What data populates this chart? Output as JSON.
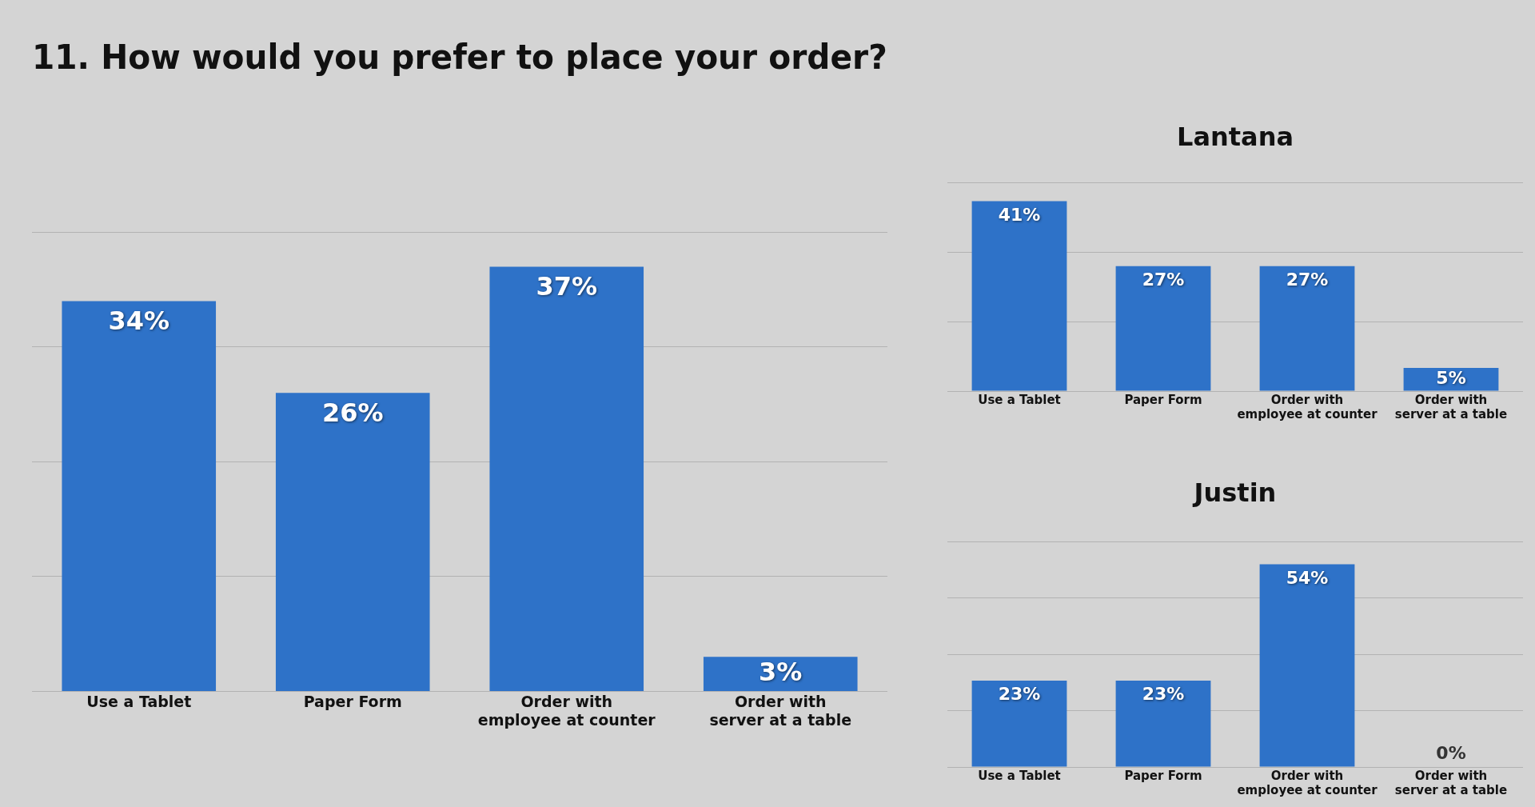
{
  "chart_data": [
    {
      "type": "bar",
      "title": "11. How would you prefer to place your order?",
      "categories": [
        "Use a Tablet",
        "Paper Form",
        "Order with employee at counter",
        "Order with server at a table"
      ],
      "values": [
        34,
        26,
        37,
        3
      ],
      "value_labels": [
        "34%",
        "26%",
        "37%",
        "3%"
      ],
      "color": "#2e72c8",
      "ylim": [
        0,
        40
      ],
      "yticks": [
        {
          "value": 0,
          "label": null
        },
        {
          "value": 10,
          "label": null
        },
        {
          "value": 20,
          "label": null
        },
        {
          "value": 30,
          "label": null
        },
        {
          "value": 40,
          "label": null
        }
      ],
      "grid": "y",
      "tick_labels": "x"
    },
    {
      "type": "bar",
      "title": "Lantana",
      "categories": [
        "Use a Tablet",
        "Paper Form",
        "Order with employee at counter",
        "Order with server at a table"
      ],
      "values": [
        41,
        27,
        27,
        5
      ],
      "value_labels": [
        "41%",
        "27%",
        "27%",
        "5%"
      ],
      "color": "#2e72c8",
      "ylim": [
        0,
        45
      ],
      "yticks": [
        {
          "value": 0,
          "label": null
        },
        {
          "value": 15,
          "label": null
        },
        {
          "value": 30,
          "label": null
        },
        {
          "value": 45,
          "label": null
        }
      ],
      "grid": "y",
      "tick_labels": "x"
    },
    {
      "type": "bar",
      "title": "Justin",
      "categories": [
        "Use a Tablet",
        "Paper Form",
        "Order with employee at counter",
        "Order with server at a table"
      ],
      "values": [
        23,
        23,
        54,
        0
      ],
      "value_labels": [
        "23%",
        "23%",
        "54%",
        "0%"
      ],
      "color": "#2e72c8",
      "ylim": [
        0,
        60
      ],
      "yticks": [
        {
          "value": 0,
          "label": null
        },
        {
          "value": 15,
          "label": null
        },
        {
          "value": 30,
          "label": null
        },
        {
          "value": 45,
          "label": null
        },
        {
          "value": 60,
          "label": null
        }
      ],
      "grid": "y",
      "tick_labels": "x"
    }
  ]
}
